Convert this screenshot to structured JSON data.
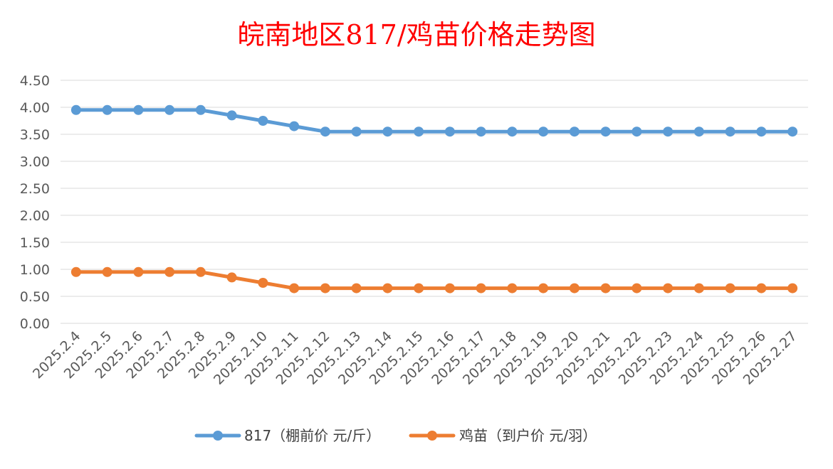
{
  "chart_data": {
    "type": "line",
    "title": "皖南地区817/鸡苗价格走势图",
    "xlabel": "",
    "ylabel": "",
    "ylim": [
      0,
      4.5
    ],
    "ytick_step": 0.5,
    "yticks": [
      "0.00",
      "0.50",
      "1.00",
      "1.50",
      "2.00",
      "2.50",
      "3.00",
      "3.50",
      "4.00",
      "4.50"
    ],
    "grid": true,
    "legend_position": "bottom",
    "categories": [
      "2025.2.4",
      "2025.2.5",
      "2025.2.6",
      "2025.2.7",
      "2025.2.8",
      "2025.2.9",
      "2025.2.10",
      "2025.2.11",
      "2025.2.12",
      "2025.2.13",
      "2025.2.14",
      "2025.2.15",
      "2025.2.16",
      "2025.2.17",
      "2025.2.18",
      "2025.2.19",
      "2025.2.20",
      "2025.2.21",
      "2025.2.22",
      "2025.2.23",
      "2025.2.24",
      "2025.2.25",
      "2025.2.26",
      "2025.2.27"
    ],
    "series": [
      {
        "name": "817（棚前价 元/斤）",
        "color": "#5b9bd5",
        "values": [
          3.95,
          3.95,
          3.95,
          3.95,
          3.95,
          3.85,
          3.75,
          3.65,
          3.55,
          3.55,
          3.55,
          3.55,
          3.55,
          3.55,
          3.55,
          3.55,
          3.55,
          3.55,
          3.55,
          3.55,
          3.55,
          3.55,
          3.55,
          3.55
        ]
      },
      {
        "name": "鸡苗（到户价 元/羽）",
        "color": "#ed7d31",
        "values": [
          0.95,
          0.95,
          0.95,
          0.95,
          0.95,
          0.85,
          0.75,
          0.65,
          0.65,
          0.65,
          0.65,
          0.65,
          0.65,
          0.65,
          0.65,
          0.65,
          0.65,
          0.65,
          0.65,
          0.65,
          0.65,
          0.65,
          0.65,
          0.65
        ]
      }
    ]
  }
}
